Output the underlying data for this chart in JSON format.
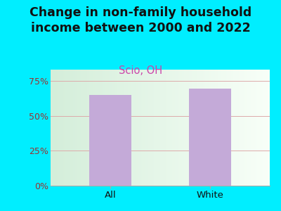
{
  "categories": [
    "All",
    "White"
  ],
  "values": [
    65.0,
    69.5
  ],
  "bar_color": "#c4aad8",
  "title": "Change in non-family household\nincome between 2000 and 2022",
  "subtitle": "Scio, OH",
  "ylim": [
    0,
    83
  ],
  "yticks": [
    0,
    25,
    50,
    75
  ],
  "ytick_labels": [
    "0%",
    "25%",
    "50%",
    "75%"
  ],
  "title_fontsize": 12.5,
  "subtitle_fontsize": 10.5,
  "title_color": "#111111",
  "subtitle_color": "#cc44aa",
  "ytick_color": "#993333",
  "xtick_color": "#111111",
  "background_color": "#00eeff",
  "plot_bg_left": "#d4eeda",
  "plot_bg_right": "#f0f8f0",
  "grid_color": "#ddaaaa",
  "bar_width": 0.42
}
